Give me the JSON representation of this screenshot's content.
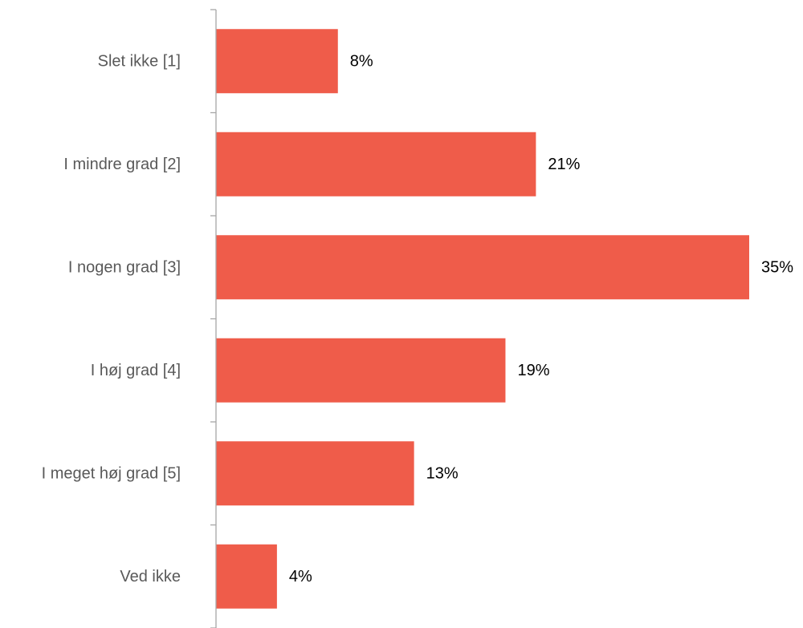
{
  "chart_data": {
    "type": "bar",
    "orientation": "horizontal",
    "categories": [
      "Slet ikke [1]",
      "I mindre grad [2]",
      "I nogen grad [3]",
      "I høj grad [4]",
      "I meget høj grad [5]",
      "Ved ikke"
    ],
    "values": [
      8,
      21,
      35,
      19,
      13,
      4
    ],
    "value_labels": [
      "8%",
      "21%",
      "35%",
      "19%",
      "13%",
      "4%"
    ],
    "unit": "%",
    "grid": false,
    "legend": "none",
    "colors": {
      "bar": "#EF5C4A",
      "axis": "#A6A6A6",
      "category_text": "#595959",
      "value_text": "#000000"
    }
  }
}
